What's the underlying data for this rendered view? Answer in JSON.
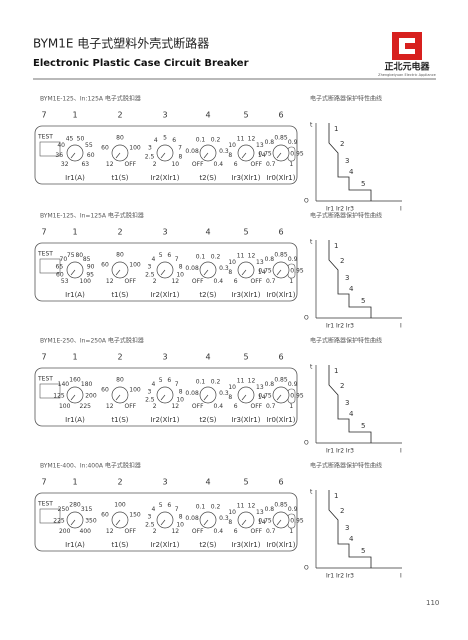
{
  "header": {
    "title": "BYM1E 电子式塑料外壳式断路器",
    "subtitle": "Electronic Plastic Case Circuit Breaker",
    "brand": "正北元电器",
    "brand_en": "Zhengbeiyuan Electric Appliance"
  },
  "panels": [
    {
      "caption": "BYM1E-125、In:125A 电子式脱扣器",
      "curve_caption": "电子式断路器保护特性曲线",
      "numbers": [
        "7",
        "1",
        "2",
        "3",
        "4",
        "5",
        "6"
      ],
      "test": "TEST",
      "dials": [
        {
          "name": "Ir1(A)",
          "labels": [
            "32",
            "36",
            "40",
            "45",
            "50",
            "55",
            "60",
            "63"
          ]
        },
        {
          "name": "t1(S)",
          "labels": [
            "12",
            "60",
            "80",
            "100",
            "OFF"
          ]
        },
        {
          "name": "Ir2(Xlr1)",
          "labels": [
            "2",
            "2.5",
            "3",
            "4",
            "5",
            "6",
            "7",
            "8",
            "10"
          ]
        },
        {
          "name": "t2(S)",
          "labels": [
            "OFF",
            "0.08",
            "0.1",
            "0.2",
            "0.3",
            "0.4"
          ]
        },
        {
          "name": "Ir3(Xlr1)",
          "labels": [
            "6",
            "8",
            "10",
            "11",
            "12",
            "13",
            "14",
            "OFF"
          ]
        },
        {
          "name": "Ir0(Xlr1)",
          "labels": [
            "0.7",
            "0.75",
            "0.8",
            "0.85",
            "0.9",
            "0.95",
            "1"
          ]
        }
      ],
      "curve": {
        "t": "t",
        "points": [
          "1",
          "2",
          "3",
          "4",
          "5"
        ],
        "x_labels": "Ir1 Ir2  Ir3",
        "i": "I",
        "origin": "O"
      }
    },
    {
      "caption": "BYM1E-125、In=125A 电子式脱扣器",
      "curve_caption": "电子式断路器保护特性曲线",
      "numbers": [
        "7",
        "1",
        "2",
        "3",
        "4",
        "5",
        "6"
      ],
      "test": "TEST",
      "dials": [
        {
          "name": "Ir1(A)",
          "labels": [
            "53",
            "60",
            "65",
            "70",
            "75",
            "80",
            "85",
            "90",
            "95",
            "100"
          ]
        },
        {
          "name": "t1(S)",
          "labels": [
            "12",
            "60",
            "80",
            "100",
            "OFF"
          ]
        },
        {
          "name": "Ir2(Xlr1)",
          "labels": [
            "2",
            "2.5",
            "3",
            "4",
            "5",
            "6",
            "7",
            "8",
            "10",
            "12"
          ]
        },
        {
          "name": "t2(S)",
          "labels": [
            "OFF",
            "0.08",
            "0.1",
            "0.2",
            "0.3",
            "0.4"
          ]
        },
        {
          "name": "Ir3(Xlr1)",
          "labels": [
            "6",
            "8",
            "10",
            "11",
            "12",
            "13",
            "14",
            "OFF"
          ]
        },
        {
          "name": "Ir0(Xlr1)",
          "labels": [
            "0.7",
            "0.75",
            "0.8",
            "0.85",
            "0.9",
            "0.95",
            "1"
          ]
        }
      ],
      "curve": {
        "t": "t",
        "points": [
          "1",
          "2",
          "3",
          "4",
          "5"
        ],
        "x_labels": "Ir1 Ir2  Ir3",
        "i": "I",
        "origin": "O"
      }
    },
    {
      "caption": "BYM1E-250、In=250A 电子式脱扣器",
      "curve_caption": "电子式断路器保护特性曲线",
      "numbers": [
        "7",
        "1",
        "2",
        "3",
        "4",
        "5",
        "6"
      ],
      "test": "TEST",
      "dials": [
        {
          "name": "Ir1(A)",
          "labels": [
            "100",
            "125",
            "140",
            "160",
            "180",
            "200",
            "225"
          ]
        },
        {
          "name": "t1(S)",
          "labels": [
            "12",
            "60",
            "80",
            "100",
            "OFF"
          ]
        },
        {
          "name": "Ir2(Xlr1)",
          "labels": [
            "2",
            "2.5",
            "3",
            "4",
            "5",
            "6",
            "7",
            "8",
            "10",
            "12"
          ]
        },
        {
          "name": "t2(S)",
          "labels": [
            "OFF",
            "0.08",
            "0.1",
            "0.2",
            "0.3",
            "0.4"
          ]
        },
        {
          "name": "Ir3(Xlr1)",
          "labels": [
            "6",
            "8",
            "10",
            "11",
            "12",
            "13",
            "14",
            "OFF"
          ]
        },
        {
          "name": "Ir0(Xlr1)",
          "labels": [
            "0.7",
            "0.75",
            "0.8",
            "0.85",
            "0.9",
            "0.95",
            "1"
          ]
        }
      ],
      "curve": {
        "t": "t",
        "points": [
          "1",
          "2",
          "3",
          "4",
          "5"
        ],
        "x_labels": "Ir1 Ir2  Ir3",
        "i": "I",
        "origin": "O"
      }
    },
    {
      "caption": "BYM1E-400、In:400A 电子式脱扣器",
      "curve_caption": "电子式断路器保护特性曲线",
      "numbers": [
        "7",
        "1",
        "2",
        "3",
        "4",
        "5",
        "6"
      ],
      "test": "TEST",
      "dials": [
        {
          "name": "Ir1(A)",
          "labels": [
            "200",
            "225",
            "250",
            "280",
            "315",
            "350",
            "400"
          ]
        },
        {
          "name": "t1(S)",
          "labels": [
            "12",
            "60",
            "100",
            "150",
            "OFF"
          ]
        },
        {
          "name": "Ir2(Xlr1)",
          "labels": [
            "2",
            "2.5",
            "3",
            "4",
            "5",
            "6",
            "7",
            "8",
            "10",
            "12"
          ]
        },
        {
          "name": "t2(S)",
          "labels": [
            "OFF",
            "0.08",
            "0.1",
            "0.2",
            "0.3",
            "0.4"
          ]
        },
        {
          "name": "Ir3(Xlr1)",
          "labels": [
            "6",
            "8",
            "10",
            "11",
            "12",
            "13",
            "14",
            "OFF"
          ]
        },
        {
          "name": "Ir0(Xlr1)",
          "labels": [
            "0.7",
            "0.75",
            "0.8",
            "0.85",
            "0.9",
            "0.95",
            "1"
          ]
        }
      ],
      "curve": {
        "t": "t",
        "points": [
          "1",
          "2",
          "3",
          "4",
          "5"
        ],
        "x_labels": "Ir1 Ir2  Ir3",
        "i": "I",
        "origin": "O"
      }
    }
  ],
  "footer": {
    "page": "110"
  }
}
